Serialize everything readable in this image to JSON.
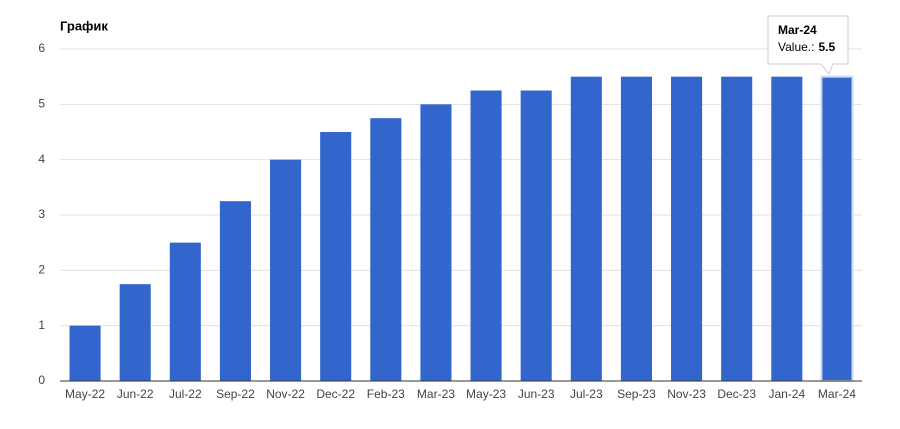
{
  "chart_data": {
    "type": "bar",
    "title": "График",
    "categories": [
      "May-22",
      "Jun-22",
      "Jul-22",
      "Sep-22",
      "Nov-22",
      "Dec-22",
      "Feb-23",
      "Mar-23",
      "May-23",
      "Jun-23",
      "Jul-23",
      "Sep-23",
      "Nov-23",
      "Dec-23",
      "Jan-24",
      "Mar-24"
    ],
    "values": [
      1,
      1.75,
      2.5,
      3.25,
      4,
      4.5,
      4.75,
      5,
      5.25,
      5.25,
      5.5,
      5.5,
      5.5,
      5.5,
      5.5,
      5.5
    ],
    "color": "#3366cc",
    "ylim": [
      0,
      6
    ],
    "yticks": [
      0,
      1,
      2,
      3,
      4,
      5,
      6
    ],
    "grid": true,
    "tooltip_label": "Value.:"
  }
}
